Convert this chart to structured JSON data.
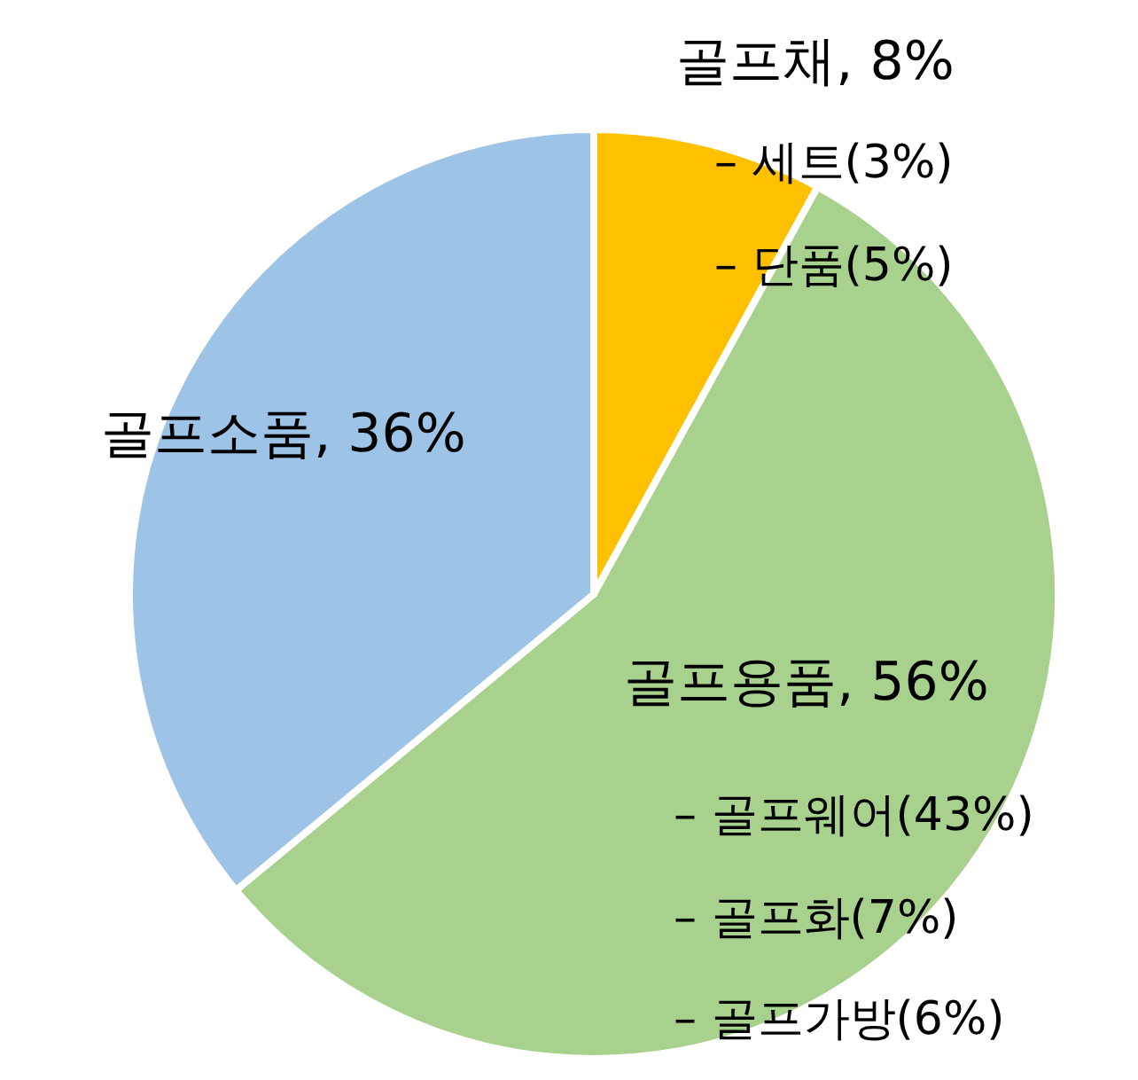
{
  "chart_data": {
    "type": "pie",
    "categories": [
      "골프채",
      "골프용품",
      "골프소품"
    ],
    "values": [
      8,
      56,
      36
    ],
    "colors": [
      "#ffc000",
      "#a9d18e",
      "#9dc3e6"
    ],
    "value_labels": [
      "8%",
      "56%",
      "36%"
    ],
    "annotations": [
      "– 세트(3%)",
      "– 단품(5%)",
      "– 골프웨어(43%)",
      "– 골프화(7%)",
      "– 골프가방(6%)"
    ],
    "legend": false
  }
}
